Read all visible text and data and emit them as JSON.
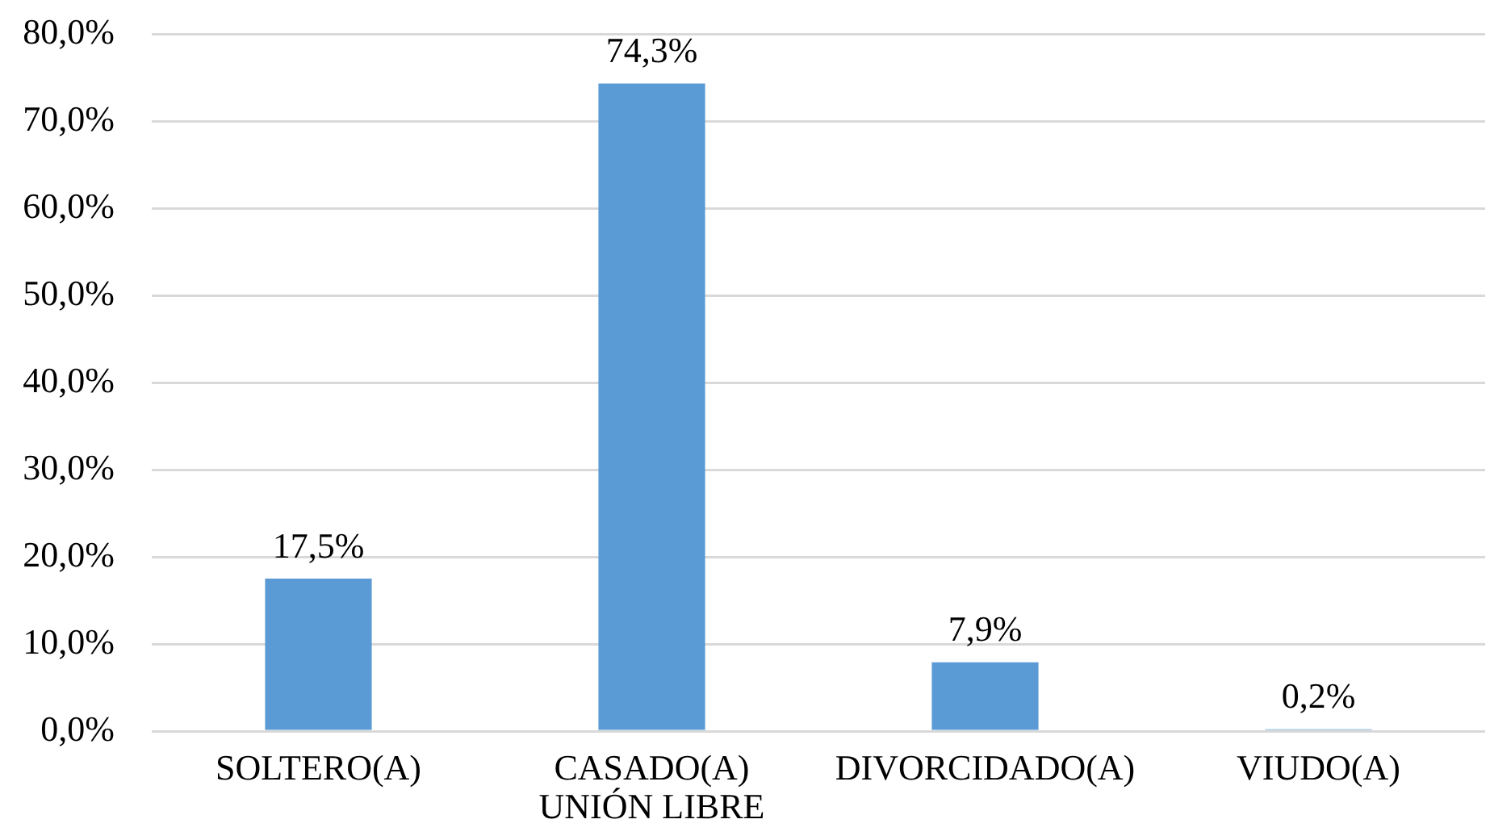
{
  "chart_data": {
    "type": "bar",
    "categories": [
      "SOLTERO(A)",
      "CASADO(A) UNIÓN LIBRE",
      "DIVORCIDADO(A)",
      "VIUDO(A)"
    ],
    "values": [
      17.5,
      74.3,
      7.9,
      0.2
    ],
    "color": "#5b9bd5",
    "value_labels": [
      "17,5%",
      "74,3%",
      "7,9%",
      "0,2%"
    ],
    "ylim": [
      0,
      80
    ],
    "yticks": [
      {
        "value": 0,
        "label": "0,0%"
      },
      {
        "value": 10,
        "label": "10,0%"
      },
      {
        "value": 20,
        "label": "20,0%"
      },
      {
        "value": 30,
        "label": "30,0%"
      },
      {
        "value": 40,
        "label": "40,0%"
      },
      {
        "value": 50,
        "label": "50,0%"
      },
      {
        "value": 60,
        "label": "60,0%"
      },
      {
        "value": 70,
        "label": "70,0%"
      },
      {
        "value": 80,
        "label": "80,0%"
      }
    ],
    "grid": "y"
  }
}
